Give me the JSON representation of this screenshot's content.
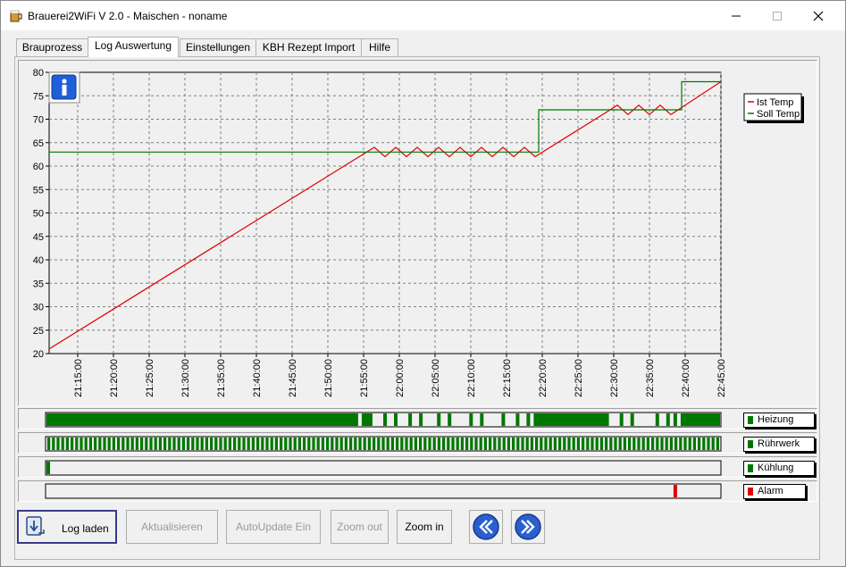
{
  "window": {
    "title": "Brauerei2WiFi V 2.0 - Maischen - noname"
  },
  "tabs": [
    {
      "label": "Brauprozess"
    },
    {
      "label": "Log Auswertung"
    },
    {
      "label": "Einstellungen"
    },
    {
      "label": "KBH Rezept Import"
    },
    {
      "label": "Hilfe"
    }
  ],
  "chart_data": {
    "type": "line",
    "ylim": [
      20,
      80
    ],
    "yticks": [
      20,
      25,
      30,
      35,
      40,
      45,
      50,
      55,
      60,
      65,
      70,
      75,
      80
    ],
    "xticks": [
      "21:15:00",
      "21:20:00",
      "21:25:00",
      "21:30:00",
      "21:35:00",
      "21:40:00",
      "21:45:00",
      "21:50:00",
      "21:55:00",
      "22:00:00",
      "22:05:00",
      "22:10:00",
      "22:15:00",
      "22:20:00",
      "22:25:00",
      "22:30:00",
      "22:35:00",
      "22:40:00",
      "22:45:00"
    ],
    "series": [
      {
        "name": "Ist Temp",
        "color": "#e00000",
        "x": [
          "21:11:00",
          "21:56:30",
          "21:58:00",
          "21:59:30",
          "22:01:00",
          "22:02:30",
          "22:04:00",
          "22:05:30",
          "22:07:00",
          "22:08:30",
          "22:10:00",
          "22:11:30",
          "22:13:00",
          "22:14:30",
          "22:16:00",
          "22:17:30",
          "22:19:00",
          "22:29:30",
          "22:30:30",
          "22:32:00",
          "22:33:30",
          "22:35:00",
          "22:36:30",
          "22:38:00",
          "22:45:00"
        ],
        "y": [
          21,
          64,
          62,
          64,
          62,
          64,
          62,
          64,
          62,
          64,
          62,
          64,
          62,
          64,
          62,
          64,
          62,
          72,
          73,
          71,
          73,
          71,
          73,
          71,
          78
        ]
      },
      {
        "name": "Soll Temp",
        "color": "#007800",
        "x": [
          "21:11:00",
          "22:19:30",
          "22:19:30",
          "22:39:30",
          "22:39:30",
          "22:45:00"
        ],
        "y": [
          63,
          63,
          72,
          72,
          78,
          78
        ]
      }
    ]
  },
  "strips": [
    {
      "label": "Heizung",
      "color": "#007800",
      "on_ranges": [
        [
          "21:11:00",
          "21:54:30"
        ],
        [
          "21:55:00",
          "21:56:30"
        ],
        [
          "21:58:00",
          "21:58:30"
        ],
        [
          "21:59:30",
          "22:00:00"
        ],
        [
          "22:01:30",
          "22:02:00"
        ],
        [
          "22:03:00",
          "22:03:30"
        ],
        [
          "22:05:30",
          "22:06:00"
        ],
        [
          "22:07:00",
          "22:07:30"
        ],
        [
          "22:10:00",
          "22:10:30"
        ],
        [
          "22:11:30",
          "22:12:00"
        ],
        [
          "22:14:30",
          "22:15:00"
        ],
        [
          "22:16:30",
          "22:17:00"
        ],
        [
          "22:18:00",
          "22:18:30"
        ],
        [
          "22:19:00",
          "22:29:30"
        ],
        [
          "22:31:00",
          "22:31:30"
        ],
        [
          "22:32:30",
          "22:33:00"
        ],
        [
          "22:36:00",
          "22:36:30"
        ],
        [
          "22:37:30",
          "22:38:00"
        ],
        [
          "22:38:30",
          "22:39:00"
        ],
        [
          "22:39:30",
          "22:45:00"
        ]
      ]
    },
    {
      "label": "Rührwerk",
      "color": "#007800",
      "pattern": "alternating"
    },
    {
      "label": "Kühlung",
      "color": "#007800",
      "on_ranges": [
        [
          "21:11:00",
          "21:11:30"
        ]
      ]
    },
    {
      "label": "Alarm",
      "color": "#e00000",
      "on_ranges": [
        [
          "22:38:30",
          "22:39:00"
        ]
      ]
    }
  ],
  "toolbar": {
    "load": "Log laden",
    "refresh": "Aktualisieren",
    "autoupdate": "AutoUpdate Ein",
    "zoom_out": "Zoom out",
    "zoom_in": "Zoom in"
  },
  "icons": {
    "app": "beer-mug-icon",
    "info": "info-icon",
    "load": "load-log-icon",
    "prev": "double-left-arrow-icon",
    "next": "double-right-arrow-icon"
  }
}
